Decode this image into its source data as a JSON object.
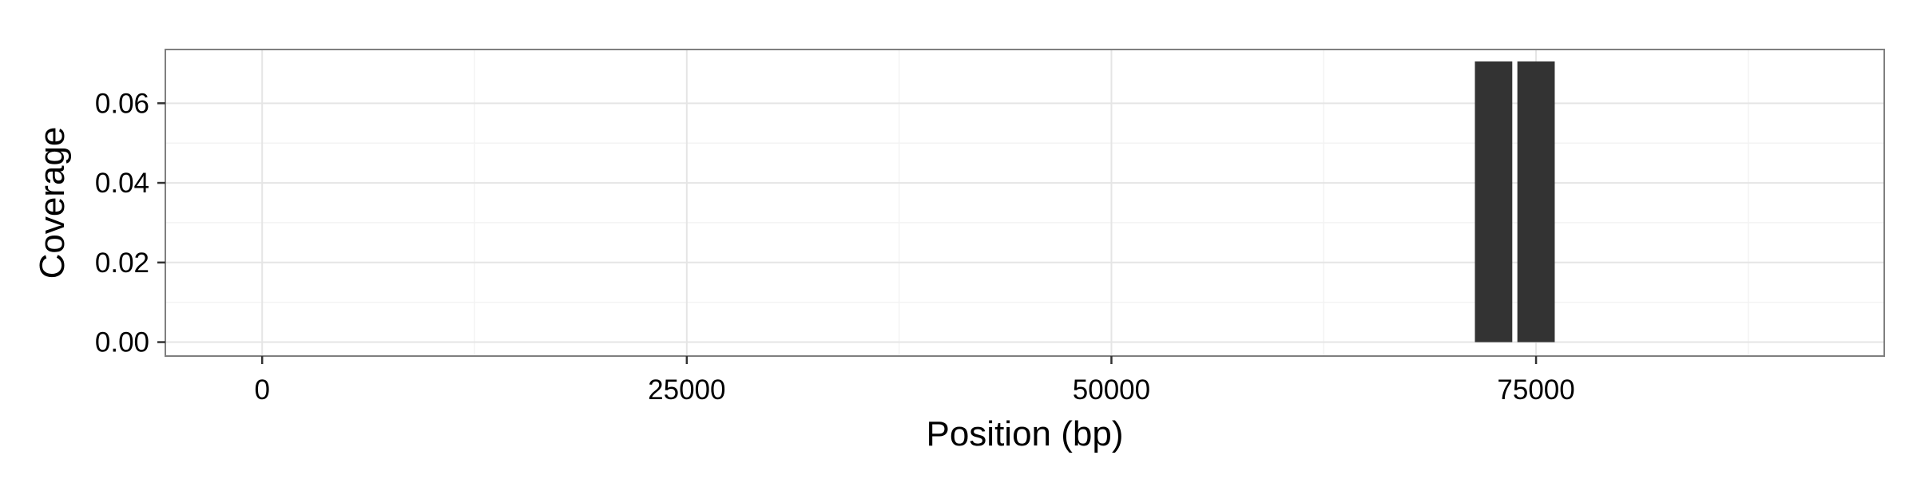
{
  "chart_data": {
    "type": "bar",
    "title": "",
    "xlabel": "Position (bp)",
    "ylabel": "Coverage",
    "xlim": [
      -5700,
      95500
    ],
    "ylim": [
      -0.0035,
      0.0735
    ],
    "x_ticks": [
      0,
      25000,
      50000,
      75000
    ],
    "x_tick_labels": [
      "0",
      "25000",
      "50000",
      "75000"
    ],
    "x_minor_ticks": [
      12500,
      37500,
      62500,
      87500
    ],
    "y_ticks": [
      0,
      0.02,
      0.04,
      0.06
    ],
    "y_tick_labels": [
      "0.00",
      "0.02",
      "0.04",
      "0.06"
    ],
    "y_minor_ticks": [
      0.01,
      0.03,
      0.05
    ],
    "grid": true,
    "bar_width": 2200,
    "x": [
      72500,
      75000
    ],
    "values": [
      0.0705,
      0.0705
    ],
    "colors": {
      "bar": "#333333",
      "grid_major": "#e5e5e5",
      "grid_minor": "#f3f3f3",
      "panel_border": "#7f7f7f",
      "text": "#000000"
    }
  }
}
